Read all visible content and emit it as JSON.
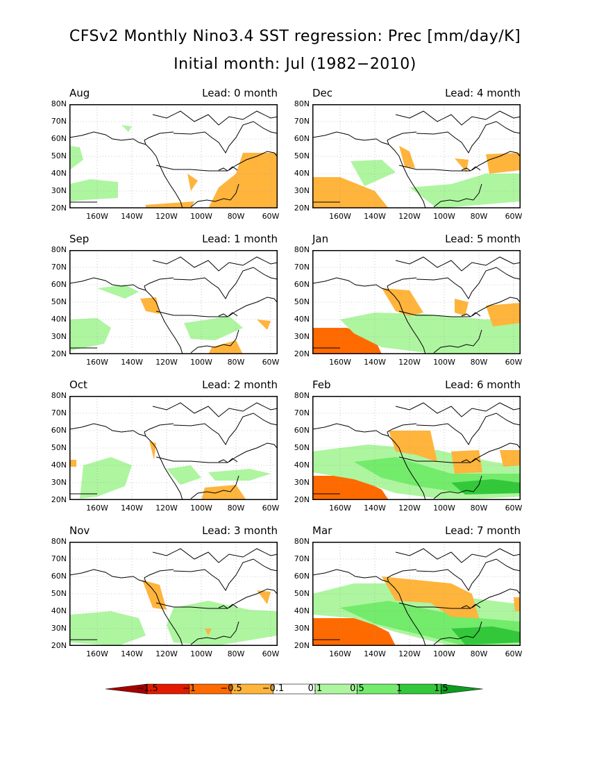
{
  "title": "CFSv2 Monthly Nino3.4 SST regression: Prec [mm/day/K]",
  "subtitle": "Initial month: Jul (1982−2010)",
  "lat_ticks": [
    "80N",
    "70N",
    "60N",
    "50N",
    "40N",
    "30N",
    "20N"
  ],
  "lon_ticks": [
    "160W",
    "140W",
    "120W",
    "100W",
    "80W",
    "60W"
  ],
  "panels": [
    {
      "month": "Aug",
      "lead": "Lead: 0 month"
    },
    {
      "month": "Dec",
      "lead": "Lead: 4 month"
    },
    {
      "month": "Sep",
      "lead": "Lead: 1 month"
    },
    {
      "month": "Jan",
      "lead": "Lead: 5 month"
    },
    {
      "month": "Oct",
      "lead": "Lead: 2 month"
    },
    {
      "month": "Feb",
      "lead": "Lead: 6 month"
    },
    {
      "month": "Nov",
      "lead": "Lead: 3 month"
    },
    {
      "month": "Mar",
      "lead": "Lead: 7 month"
    }
  ],
  "colorbar": {
    "labels": [
      "−1.5",
      "−1",
      "−0.5",
      "−0.1",
      "0.1",
      "0.5",
      "1",
      "1.5"
    ],
    "colors": [
      "#a50000",
      "#e31a00",
      "#ff6a00",
      "#ffb43c",
      "#ffffff",
      "#aef5a0",
      "#73eb6b",
      "#32c83a",
      "#0f9b1e"
    ]
  },
  "colors": {
    "orange": "#ffb43c",
    "dark_orange": "#ff6a00",
    "red": "#e31a00",
    "dark_red": "#a50000",
    "light_green": "#aef5a0",
    "green": "#73eb6b",
    "dark_green": "#32c83a"
  }
}
